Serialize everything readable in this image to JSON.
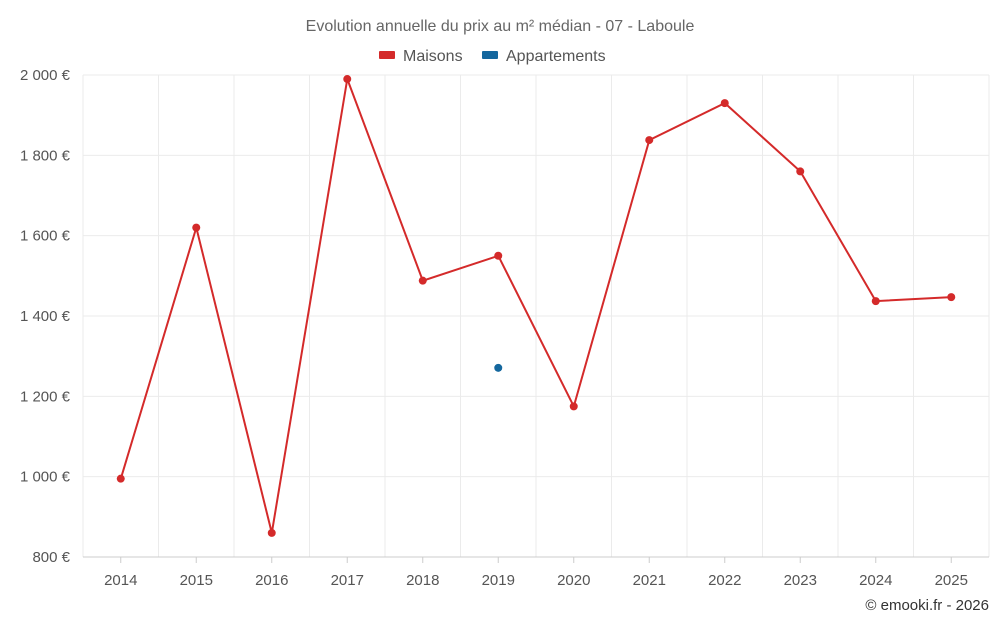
{
  "chart_data": {
    "type": "line",
    "title": "Evolution annuelle du prix au m² médian - 07 - Laboule",
    "categories": [
      "2014",
      "2015",
      "2016",
      "2017",
      "2018",
      "2019",
      "2020",
      "2021",
      "2022",
      "2023",
      "2024",
      "2025"
    ],
    "series": [
      {
        "name": "Maisons",
        "color": "#d42a2a",
        "values": [
          995,
          1620,
          860,
          1990,
          1488,
          1550,
          1175,
          1838,
          1930,
          1760,
          1437,
          1447
        ]
      },
      {
        "name": "Appartements",
        "color": "#14679e",
        "values": [
          null,
          null,
          null,
          null,
          null,
          1271,
          null,
          null,
          null,
          null,
          null,
          null
        ]
      }
    ],
    "ylim": [
      800,
      2000
    ],
    "yticks": [
      800,
      1000,
      1200,
      1400,
      1600,
      1800,
      2000
    ],
    "ytick_labels": [
      "800 €",
      "1 000 €",
      "1 200 €",
      "1 400 €",
      "1 600 €",
      "1 800 €",
      "2 000 €"
    ],
    "xlabel": "",
    "ylabel": "",
    "grid": true,
    "legend_position": "top-center"
  },
  "legend": {
    "items": [
      {
        "label": "Maisons",
        "color": "#d42a2a"
      },
      {
        "label": "Appartements",
        "color": "#14679e"
      }
    ]
  },
  "credit": "© emooki.fr - 2026"
}
